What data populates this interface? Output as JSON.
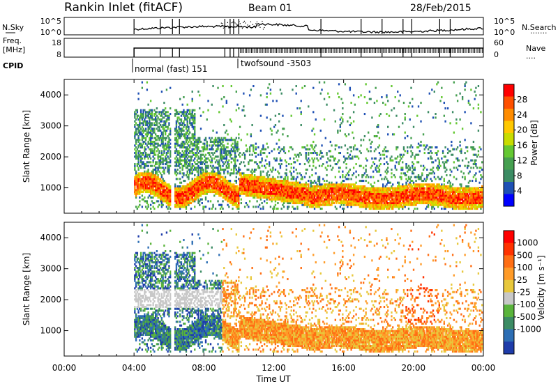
{
  "header": {
    "station": "Rankin Inlet (fitACF)",
    "beam": "Beam 01",
    "date": "28/Feb/2015"
  },
  "left_labels": {
    "nsky": "N.Sky",
    "freq": "Freq.",
    "freq_unit": "[MHz]",
    "cpid": "CPID"
  },
  "right_labels": {
    "nsearch": "N.Search",
    "nsearch_dots": "·······",
    "nave": "Nave",
    "nave_dots": "····"
  },
  "noise_axis": {
    "left_ticks": [
      "10^5",
      "10^0"
    ],
    "right_ticks": [
      "10^5",
      "10^0"
    ]
  },
  "freq_axis": {
    "left_ticks": [
      "18",
      "8"
    ],
    "right_ticks": [
      "60",
      "0"
    ]
  },
  "cpid": {
    "segment1": "normal (fast) 151",
    "segment2": "twofsound -3503"
  },
  "colors": {
    "power": [
      "#0000ff",
      "#1e50b4",
      "#3c8c64",
      "#46a050",
      "#64c832",
      "#c8dc00",
      "#ffc800",
      "#ff8c00",
      "#ff5000",
      "#ff0000"
    ],
    "velocity": [
      "#1e3caa",
      "#2d6eb4",
      "#3c8c64",
      "#5ab43c",
      "#c8c8c8",
      "#e8c83c",
      "#ff9b28",
      "#ff6e14",
      "#ff3200",
      "#ff0000"
    ]
  },
  "chart_data": [
    {
      "type": "heatmap",
      "ylabel": "Slant Range [km]",
      "xlim": [
        0,
        24
      ],
      "ylim": [
        180,
        4500
      ],
      "yticks": [
        "1000",
        "2000",
        "3000",
        "4000"
      ],
      "colorbar": {
        "label": "Power [dB]",
        "ticks": [
          "28",
          "24",
          "20",
          "16",
          "12",
          "8",
          "4"
        ]
      }
    },
    {
      "type": "heatmap",
      "xlabel": "Time UT",
      "ylabel": "Slant Range [km]",
      "xlim": [
        0,
        24
      ],
      "ylim": [
        180,
        4500
      ],
      "xticks": [
        "00:00",
        "04:00",
        "08:00",
        "12:00",
        "16:00",
        "20:00",
        "00:00"
      ],
      "yticks": [
        "1000",
        "2000",
        "3000",
        "4000"
      ],
      "colorbar": {
        "label": "Velocity [m s⁻¹]",
        "ticks": [
          "1000",
          "500",
          "100",
          "25",
          "-25",
          "-100",
          "-500",
          "-1000"
        ]
      }
    }
  ]
}
